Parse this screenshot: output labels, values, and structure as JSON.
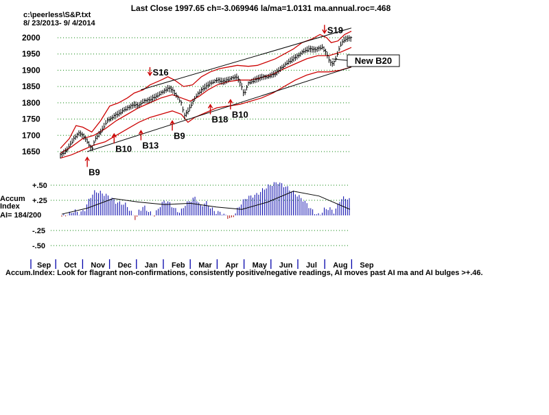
{
  "header": {
    "title": "Last Close 1997.65 ch=-3.069946  la/ma=1.0131 ma.annual.roc=.468",
    "file": "c:\\peerless\\S&P.txt",
    "date_range": "8/ 23/2013- 9/ 4/2014"
  },
  "footer": {
    "caption": "Accum.Index: Look for flagrant non-confirmations, consistently positive/negative readings, AI moves past AI ma and AI bulges >+.46."
  },
  "colors": {
    "price": "#000000",
    "band": "#cc0000",
    "ma": "#cc0000",
    "signal": "#cc0000",
    "accum_bar": "#0000aa",
    "accum_neg": "#aa0000",
    "accum_ma": "#000000",
    "grid": "#008000"
  },
  "chart_data": [
    {
      "type": "line",
      "subtype": "ohlc-price-with-bands",
      "title": "Last Close 1997.65 ch=-3.069946  la/ma=1.0131 ma.annual.roc=.468",
      "y_tick_labels": [
        "2000",
        "1950",
        "1900",
        "1850",
        "1800",
        "1750",
        "1700",
        "1650"
      ],
      "y_ticks": [
        2000,
        1950,
        1900,
        1850,
        1800,
        1750,
        1700,
        1650
      ],
      "ylim": [
        1620,
        2030
      ],
      "xlim": [
        0,
        260
      ],
      "grid": "dotted horizontal",
      "series": [
        {
          "role": "close",
          "points": [
            [
              0,
              1640
            ],
            [
              6,
              1655
            ],
            [
              12,
              1690
            ],
            [
              17,
              1710
            ],
            [
              21,
              1695
            ],
            [
              25,
              1675
            ],
            [
              28,
              1655
            ],
            [
              31,
              1690
            ],
            [
              36,
              1710
            ],
            [
              42,
              1745
            ],
            [
              48,
              1760
            ],
            [
              54,
              1770
            ],
            [
              60,
              1785
            ],
            [
              66,
              1795
            ],
            [
              70,
              1790
            ],
            [
              74,
              1805
            ],
            [
              80,
              1810
            ],
            [
              86,
              1820
            ],
            [
              92,
              1835
            ],
            [
              96,
              1845
            ],
            [
              100,
              1840
            ],
            [
              104,
              1820
            ],
            [
              108,
              1800
            ],
            [
              111,
              1760
            ],
            [
              114,
              1775
            ],
            [
              118,
              1800
            ],
            [
              122,
              1825
            ],
            [
              128,
              1845
            ],
            [
              134,
              1860
            ],
            [
              140,
              1870
            ],
            [
              146,
              1865
            ],
            [
              152,
              1875
            ],
            [
              158,
              1880
            ],
            [
              162,
              1850
            ],
            [
              164,
              1825
            ],
            [
              168,
              1860
            ],
            [
              174,
              1870
            ],
            [
              180,
              1880
            ],
            [
              186,
              1880
            ],
            [
              192,
              1890
            ],
            [
              198,
              1910
            ],
            [
              204,
              1925
            ],
            [
              210,
              1940
            ],
            [
              216,
              1955
            ],
            [
              222,
              1965
            ],
            [
              228,
              1965
            ],
            [
              234,
              1970
            ],
            [
              238,
              1950
            ],
            [
              241,
              1925
            ],
            [
              244,
              1920
            ],
            [
              247,
              1945
            ],
            [
              250,
              1975
            ],
            [
              254,
              1995
            ],
            [
              258,
              2000
            ],
            [
              260,
              1998
            ]
          ]
        },
        {
          "role": "upper-band",
          "points": [
            [
              0,
              1660
            ],
            [
              8,
              1690
            ],
            [
              14,
              1730
            ],
            [
              20,
              1725
            ],
            [
              28,
              1710
            ],
            [
              36,
              1745
            ],
            [
              44,
              1790
            ],
            [
              52,
              1800
            ],
            [
              60,
              1815
            ],
            [
              66,
              1830
            ],
            [
              74,
              1840
            ],
            [
              80,
              1855
            ],
            [
              90,
              1870
            ],
            [
              96,
              1880
            ],
            [
              102,
              1870
            ],
            [
              110,
              1850
            ],
            [
              118,
              1855
            ],
            [
              126,
              1880
            ],
            [
              134,
              1895
            ],
            [
              142,
              1905
            ],
            [
              150,
              1910
            ],
            [
              158,
              1915
            ],
            [
              168,
              1912
            ],
            [
              176,
              1915
            ],
            [
              184,
              1925
            ],
            [
              192,
              1935
            ],
            [
              200,
              1950
            ],
            [
              208,
              1965
            ],
            [
              216,
              1985
            ],
            [
              224,
              1995
            ],
            [
              232,
              2010
            ],
            [
              238,
              2000
            ],
            [
              242,
              1985
            ],
            [
              248,
              1990
            ],
            [
              254,
              2010
            ],
            [
              260,
              2020
            ]
          ]
        },
        {
          "role": "moving-average",
          "points": [
            [
              0,
              1645
            ],
            [
              10,
              1665
            ],
            [
              20,
              1690
            ],
            [
              30,
              1700
            ],
            [
              40,
              1720
            ],
            [
              50,
              1745
            ],
            [
              60,
              1765
            ],
            [
              70,
              1785
            ],
            [
              80,
              1800
            ],
            [
              90,
              1815
            ],
            [
              100,
              1825
            ],
            [
              108,
              1815
            ],
            [
              116,
              1805
            ],
            [
              124,
              1820
            ],
            [
              132,
              1840
            ],
            [
              140,
              1855
            ],
            [
              150,
              1865
            ],
            [
              160,
              1870
            ],
            [
              170,
              1870
            ],
            [
              180,
              1878
            ],
            [
              190,
              1888
            ],
            [
              200,
              1905
            ],
            [
              210,
              1920
            ],
            [
              220,
              1935
            ],
            [
              230,
              1945
            ],
            [
              240,
              1945
            ],
            [
              250,
              1955
            ],
            [
              260,
              1970
            ]
          ]
        },
        {
          "role": "lower-band",
          "points": [
            [
              0,
              1630
            ],
            [
              10,
              1640
            ],
            [
              20,
              1655
            ],
            [
              30,
              1670
            ],
            [
              40,
              1680
            ],
            [
              50,
              1700
            ],
            [
              60,
              1720
            ],
            [
              70,
              1740
            ],
            [
              80,
              1755
            ],
            [
              90,
              1765
            ],
            [
              100,
              1775
            ],
            [
              108,
              1765
            ],
            [
              114,
              1740
            ],
            [
              120,
              1755
            ],
            [
              130,
              1770
            ],
            [
              140,
              1785
            ],
            [
              150,
              1790
            ],
            [
              160,
              1795
            ],
            [
              170,
              1805
            ],
            [
              180,
              1815
            ],
            [
              190,
              1830
            ],
            [
              200,
              1850
            ],
            [
              210,
              1870
            ],
            [
              220,
              1885
            ],
            [
              230,
              1895
            ],
            [
              240,
              1895
            ],
            [
              250,
              1900
            ],
            [
              260,
              1910
            ]
          ]
        },
        {
          "role": "upper-trendline",
          "points": [
            [
              72,
              1840
            ],
            [
              260,
              2030
            ]
          ]
        },
        {
          "role": "lower-trendline",
          "points": [
            [
              24,
              1650
            ],
            [
              260,
              1910
            ]
          ]
        }
      ],
      "annotations": [
        {
          "text": "S16",
          "x": 80,
          "y": 1880,
          "kind": "sell"
        },
        {
          "text": "S19",
          "x": 236,
          "y": 2010,
          "kind": "sell"
        },
        {
          "text": "B9",
          "x": 24,
          "y": 1628,
          "kind": "buy"
        },
        {
          "text": "B10",
          "x": 48,
          "y": 1700,
          "kind": "buy"
        },
        {
          "text": "B13",
          "x": 72,
          "y": 1710,
          "kind": "buy"
        },
        {
          "text": "B9",
          "x": 100,
          "y": 1740,
          "kind": "buy"
        },
        {
          "text": "B18",
          "x": 134,
          "y": 1790,
          "kind": "buy"
        },
        {
          "text": "B10",
          "x": 152,
          "y": 1805,
          "kind": "buy"
        },
        {
          "text": "New B20",
          "x": 250,
          "y": 1930,
          "kind": "buy",
          "boxed": true
        }
      ]
    },
    {
      "type": "bar",
      "subtype": "accumulation-index",
      "y_tick_labels": [
        "+.50",
        "+.25",
        "-.25",
        "-.50"
      ],
      "y_ticks": [
        0.5,
        0.25,
        -0.25,
        -0.5
      ],
      "ylim": [
        -0.55,
        0.55
      ],
      "ylabel": "Accum Index",
      "value_label": "AI= 184/200",
      "x_tick_labels": [
        "Sep",
        "Oct",
        "Nov",
        "Dec",
        "Jan",
        "Feb",
        "Mar",
        "Apr",
        "May",
        "Jun",
        "Jul",
        "Aug",
        "Sep"
      ],
      "series": [
        {
          "role": "ai",
          "values_by_segment": [
            [
              0,
              -0.02
            ],
            [
              6,
              0.03
            ],
            [
              10,
              0.08
            ],
            [
              14,
              0.03
            ],
            [
              18,
              0.1
            ],
            [
              22,
              0.3
            ],
            [
              26,
              0.4
            ],
            [
              30,
              0.38
            ],
            [
              34,
              0.34
            ],
            [
              38,
              0.3
            ],
            [
              42,
              0.22
            ],
            [
              46,
              0.2
            ],
            [
              50,
              0.18
            ],
            [
              54,
              0.05
            ],
            [
              58,
              -0.08
            ],
            [
              60,
              0.08
            ],
            [
              64,
              0.15
            ],
            [
              68,
              0.05
            ],
            [
              72,
              0.0
            ],
            [
              76,
              0.15
            ],
            [
              80,
              0.25
            ],
            [
              84,
              0.2
            ],
            [
              88,
              0.1
            ],
            [
              92,
              0.05
            ],
            [
              96,
              0.18
            ],
            [
              100,
              0.25
            ],
            [
              104,
              0.3
            ],
            [
              108,
              0.15
            ],
            [
              112,
              0.22
            ],
            [
              116,
              0.12
            ],
            [
              120,
              0.05
            ],
            [
              124,
              0.05
            ],
            [
              128,
              -0.02
            ],
            [
              132,
              -0.06
            ],
            [
              136,
              0.08
            ],
            [
              140,
              0.22
            ],
            [
              144,
              0.3
            ],
            [
              148,
              0.32
            ],
            [
              152,
              0.35
            ],
            [
              156,
              0.42
            ],
            [
              160,
              0.48
            ],
            [
              164,
              0.52
            ],
            [
              168,
              0.55
            ],
            [
              172,
              0.5
            ],
            [
              176,
              0.45
            ],
            [
              180,
              0.38
            ],
            [
              184,
              0.32
            ],
            [
              188,
              0.25
            ],
            [
              192,
              0.15
            ],
            [
              196,
              0.05
            ],
            [
              200,
              0.0
            ],
            [
              204,
              0.1
            ],
            [
              208,
              0.12
            ],
            [
              212,
              0.05
            ],
            [
              216,
              0.25
            ],
            [
              220,
              0.3
            ],
            [
              224,
              0.25
            ]
          ]
        },
        {
          "role": "ai-ma",
          "points": [
            [
              0,
              0.02
            ],
            [
              20,
              0.12
            ],
            [
              40,
              0.28
            ],
            [
              60,
              0.22
            ],
            [
              80,
              0.18
            ],
            [
              100,
              0.2
            ],
            [
              120,
              0.14
            ],
            [
              140,
              0.1
            ],
            [
              160,
              0.22
            ],
            [
              180,
              0.4
            ],
            [
              200,
              0.32
            ],
            [
              224,
              0.1
            ]
          ]
        }
      ]
    }
  ]
}
